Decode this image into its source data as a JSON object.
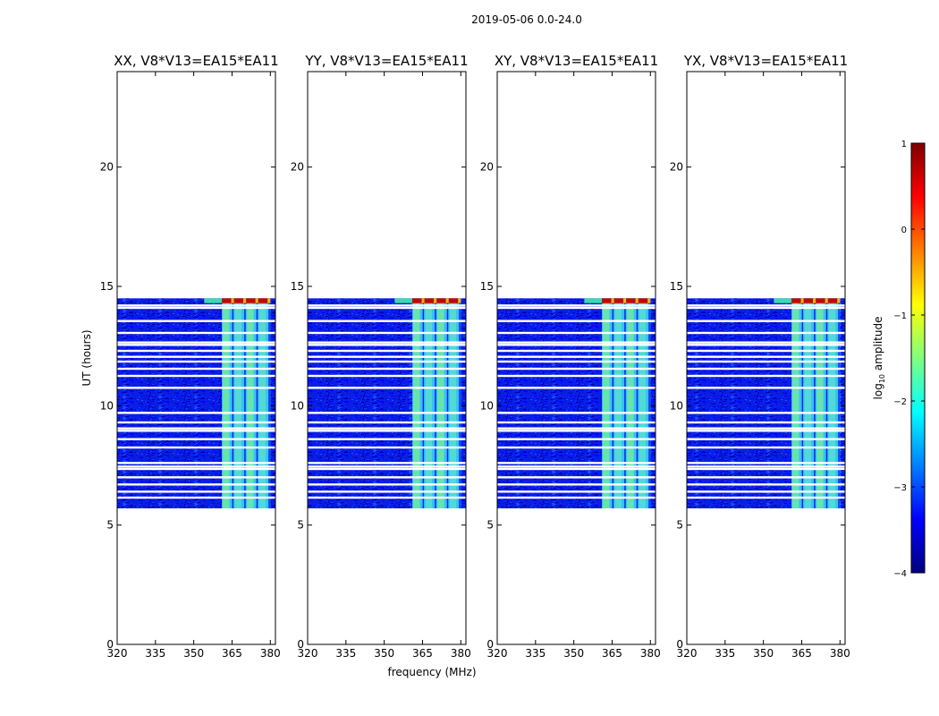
{
  "figure": {
    "suptitle": "2019-05-06 0.0-24.0",
    "ylabel": "UT (hours)",
    "xlabel": "frequency (MHz)"
  },
  "chart_data": {
    "type": "heatmap",
    "x_range": [
      320,
      382
    ],
    "y_range": [
      0,
      24
    ],
    "x_ticks": [
      320,
      335,
      350,
      365,
      380
    ],
    "y_ticks": [
      0,
      5,
      10,
      15,
      20
    ],
    "data_time_range": [
      5.7,
      14.5
    ],
    "bright_band_freq_range": [
      361,
      380
    ],
    "top_saturation_row_time": [
      14.3,
      14.5
    ],
    "flagged_times": [
      6.15,
      6.4,
      6.7,
      7.0,
      7.35,
      7.45,
      7.6,
      8.25,
      8.6,
      8.95,
      9.05,
      9.3,
      9.7,
      10.75,
      11.25,
      11.55,
      11.85,
      12.05,
      12.3,
      12.55,
      12.65,
      13.05,
      13.55,
      14.1,
      14.2
    ],
    "panels": [
      {
        "title": "XX, V8*V13=EA15*EA11"
      },
      {
        "title": "YY, V8*V13=EA15*EA11"
      },
      {
        "title": "XY, V8*V13=EA15*EA11"
      },
      {
        "title": "YX, V8*V13=EA15*EA11"
      }
    ],
    "colorbar": {
      "label_prefix": "log",
      "label_sub": "10",
      "label_suffix": " amplitude",
      "range": [
        -4,
        1
      ],
      "ticks": [
        1,
        0,
        -1,
        -2,
        -3,
        -4
      ],
      "colormap": "jet",
      "colormap_stops": [
        "#00007f",
        "#0000ff",
        "#007fff",
        "#00ffff",
        "#7fff7f",
        "#ffff00",
        "#ff7f00",
        "#ff0000",
        "#7f0000"
      ]
    }
  }
}
